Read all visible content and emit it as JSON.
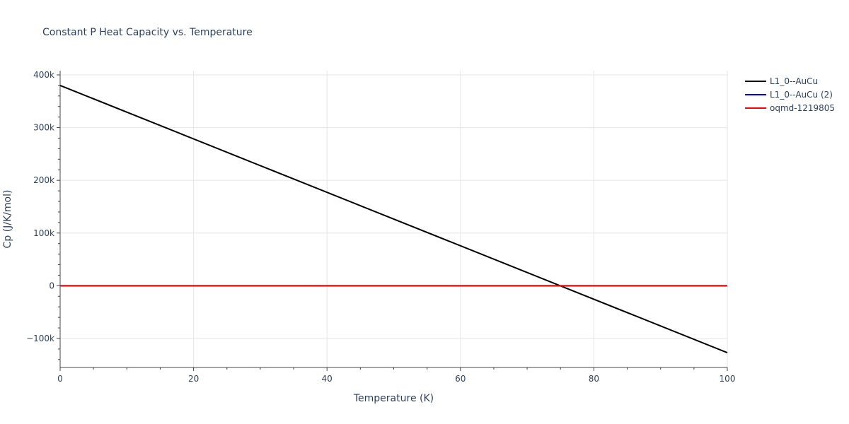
{
  "chart_data": {
    "type": "line",
    "title": "Constant P Heat Capacity vs. Temperature",
    "xlabel": "Temperature (K)",
    "ylabel": "Cp (J/K/mol)",
    "xlim": [
      0,
      100
    ],
    "ylim": [
      -155000,
      408000
    ],
    "x_ticks": [
      0,
      20,
      40,
      60,
      80,
      100
    ],
    "x_tick_labels": [
      "0",
      "20",
      "40",
      "60",
      "80",
      "100"
    ],
    "y_ticks": [
      -100000,
      0,
      100000,
      200000,
      300000,
      400000
    ],
    "y_tick_labels": [
      "−100k",
      "0",
      "100k",
      "200k",
      "300k",
      "400k"
    ],
    "grid": true,
    "legend_position": "top-right",
    "series": [
      {
        "name": "L1_0--AuCu",
        "color": "#000000",
        "x": [
          0,
          100
        ],
        "y": [
          380000,
          -127000
        ]
      },
      {
        "name": "L1_0--AuCu (2)",
        "color": "#0000ff",
        "x": [
          0,
          100
        ],
        "y": [
          0,
          0
        ]
      },
      {
        "name": "oqmd-1219805",
        "color": "#ff0000",
        "x": [
          0,
          100
        ],
        "y": [
          0,
          0
        ]
      }
    ]
  }
}
